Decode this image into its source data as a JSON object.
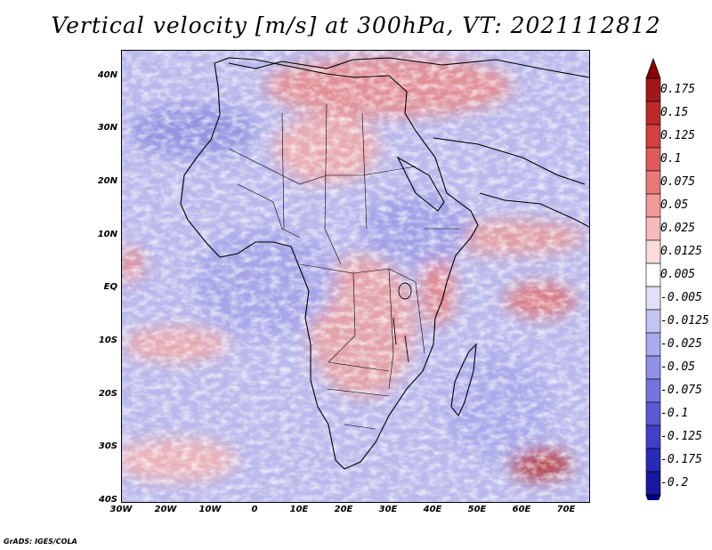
{
  "title": "Vertical velocity [m/s] at 300hPa, VT: 2021112812",
  "credit": "GrADS: IGES/COLA",
  "map": {
    "lat_ticks": [
      "40N",
      "30N",
      "20N",
      "10N",
      "EQ",
      "10S",
      "20S",
      "30S",
      "40S"
    ],
    "lon_ticks": [
      "30W",
      "20W",
      "10W",
      "0",
      "10E",
      "20E",
      "30E",
      "40E",
      "50E",
      "60E",
      "70E"
    ],
    "lat_range": [
      -40,
      45
    ],
    "lon_range": [
      -30,
      75
    ]
  },
  "colorbar": {
    "labels": [
      "0.175",
      "0.15",
      "0.125",
      "0.1",
      "0.075",
      "0.05",
      "0.025",
      "0.0125",
      "0.005",
      "-0.005",
      "-0.0125",
      "-0.025",
      "-0.05",
      "-0.075",
      "-0.1",
      "-0.125",
      "-0.175",
      "-0.2"
    ],
    "colors": [
      "#a01818",
      "#be2a2a",
      "#d24040",
      "#e05a5a",
      "#ea7878",
      "#f09a9a",
      "#f6bcbc",
      "#fadcdc",
      "#ffffff",
      "#e0e0f8",
      "#c4c4f2",
      "#aaaaee",
      "#9090e8",
      "#7474de",
      "#5a5ad4",
      "#4040c8",
      "#2a2ab8",
      "#1818a0"
    ],
    "top_color": "#8b0000",
    "bottom_color": "#00008b"
  }
}
